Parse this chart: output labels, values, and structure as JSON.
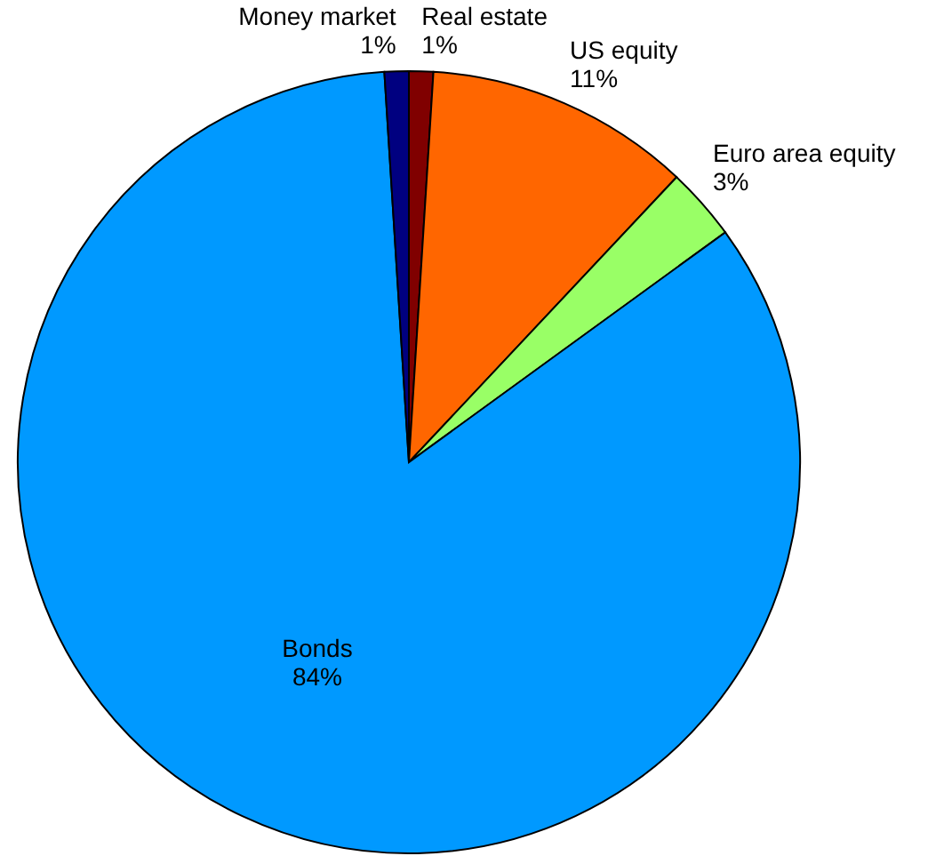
{
  "chart_data": {
    "type": "pie",
    "categories": [
      "Real estate",
      "US equity",
      "Euro area equity",
      "Bonds",
      "Money market"
    ],
    "values": [
      1,
      11,
      3,
      84,
      1
    ],
    "colors": [
      "#800000",
      "#ff6600",
      "#99ff66",
      "#0099ff",
      "#000080"
    ],
    "value_labels": [
      "1%",
      "11%",
      "3%",
      "84%",
      "1%"
    ]
  }
}
